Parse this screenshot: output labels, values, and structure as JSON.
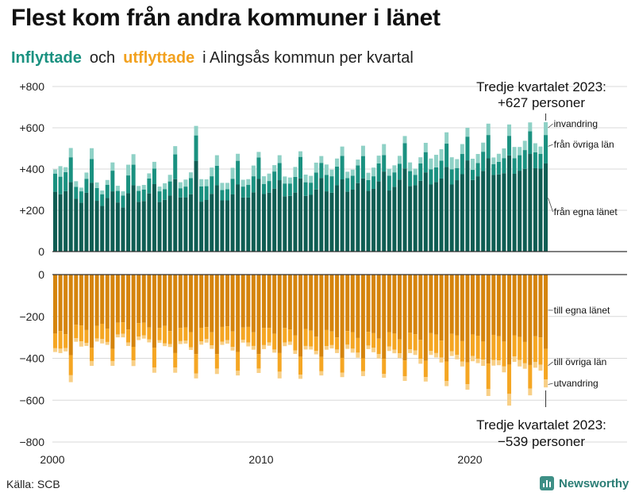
{
  "header": {
    "title": "Flest kom från andra kommuner i länet",
    "subtitle_in": "Inflyttade",
    "subtitle_and": "och",
    "subtitle_out": "utflyttade",
    "subtitle_rest": "i Alingsås  kommun  per  kvartal"
  },
  "footer": {
    "source": "Källa: SCB",
    "brand": "Newsworthy"
  },
  "colors": {
    "in_own_county": "#0f5d53",
    "in_other_county": "#1a9180",
    "in_immigration": "#8fd1c6",
    "out_own_county": "#d5840d",
    "out_other_county": "#f5a623",
    "out_emigration": "#f8cf86",
    "grid": "#d9d9d9",
    "axis": "#333333"
  },
  "chart_data": {
    "type": "bar",
    "stacked": true,
    "diverging": true,
    "x_axis": {
      "unit": "kvartal",
      "first_period": "2000 Q1",
      "last_period": "2023 Q3",
      "tick_labels": [
        "2000",
        "2010",
        "2020"
      ]
    },
    "panels": [
      {
        "name": "Inflyttade",
        "ylim": [
          0,
          800
        ],
        "ticks": [
          0,
          200,
          400,
          600,
          800
        ],
        "tick_labels": [
          "0",
          "+200",
          "+400",
          "+600",
          "+800"
        ],
        "series": [
          {
            "name": "från egna länet",
            "values": [
              290,
              278,
              293,
              337,
              256,
              237,
              285,
              334,
              246,
              221,
              260,
              292,
              238,
              214,
              283,
              321,
              241,
              245,
              282,
              327,
              240,
              251,
              271,
              351,
              262,
              263,
              278,
              440,
              242,
              250,
              280,
              321,
              248,
              248,
              277,
              325,
              262,
              262,
              287,
              352,
              279,
              285,
              305,
              346,
              268,
              270,
              286,
              355,
              270,
              275,
              301,
              357,
              292,
              285,
              321,
              350,
              290,
              300,
              332,
              355,
              294,
              304,
              340,
              388,
              296,
              314,
              349,
              403,
              317,
              321,
              343,
              384,
              325,
              337,
              354,
              410,
              325,
              346,
              375,
              442,
              347,
              365,
              391,
              452,
              371,
              374,
              380,
              466,
              377,
              392,
              401,
              473,
              404,
              402,
              427
            ]
          },
          {
            "name": "från övriga län",
            "values": [
              88,
              85,
              92,
              120,
              58,
              55,
              68,
              115,
              62,
              57,
              64,
              100,
              56,
              58,
              86,
              100,
              53,
              56,
              72,
              75,
              52,
              52,
              69,
              120,
              45,
              52,
              78,
              123,
              74,
              67,
              85,
              95,
              50,
              54,
              76,
              115,
              53,
              61,
              78,
              104,
              49,
              57,
              83,
              83,
              62,
              60,
              76,
              104,
              66,
              59,
              82,
              73,
              80,
              80,
              91,
              114,
              66,
              68,
              86,
              108,
              53,
              61,
              87,
              80,
              72,
              70,
              77,
              122,
              73,
              51,
              84,
              98,
              74,
              71,
              87,
              113,
              74,
              59,
              98,
              115,
              49,
              64,
              93,
              113,
              53,
              61,
              73,
              95,
              75,
              75,
              91,
              110,
              77,
              72,
              138
            ]
          },
          {
            "name": "invandring",
            "values": [
              20,
              51,
              24,
              45,
              27,
              18,
              30,
              52,
              27,
              18,
              23,
              40,
              25,
              20,
              52,
              51,
              24,
              22,
              25,
              33,
              23,
              28,
              32,
              40,
              29,
              34,
              28,
              46,
              35,
              33,
              42,
              51,
              35,
              31,
              53,
              34,
              33,
              28,
              52,
              27,
              37,
              36,
              31,
              38,
              34,
              29,
              48,
              27,
              37,
              33,
              48,
              33,
              50,
              32,
              39,
              45,
              31,
              29,
              28,
              50,
              35,
              42,
              38,
              53,
              33,
              34,
              38,
              35,
              42,
              30,
              30,
              45,
              52,
              61,
              55,
              55,
              58,
              43,
              48,
              43,
              54,
              44,
              44,
              55,
              32,
              39,
              47,
              55,
              55,
              40,
              45,
              43,
              44,
              35,
              62
            ]
          }
        ]
      },
      {
        "name": "Utflyttade",
        "ylim": [
          -800,
          0
        ],
        "ticks": [
          0,
          -200,
          -400,
          -600,
          -800
        ],
        "tick_labels": [
          "0",
          "−200",
          "−400",
          "−600",
          "−800"
        ],
        "series": [
          {
            "name": "till egna länet",
            "values": [
              -282,
              -270,
              -285,
              -385,
              -240,
              -243,
              -265,
              -350,
              -245,
              -235,
              -258,
              -355,
              -230,
              -228,
              -262,
              -345,
              -232,
              -230,
              -253,
              -350,
              -255,
              -245,
              -270,
              -375,
              -255,
              -252,
              -275,
              -380,
              -254,
              -251,
              -276,
              -380,
              -250,
              -247,
              -272,
              -370,
              -253,
              -250,
              -276,
              -380,
              -255,
              -255,
              -283,
              -375,
              -255,
              -262,
              -290,
              -392,
              -260,
              -268,
              -297,
              -393,
              -265,
              -272,
              -300,
              -398,
              -270,
              -275,
              -303,
              -400,
              -274,
              -280,
              -306,
              -403,
              -275,
              -282,
              -310,
              -410,
              -278,
              -285,
              -312,
              -412,
              -280,
              -287,
              -315,
              -415,
              -283,
              -290,
              -318,
              -420,
              -286,
              -292,
              -320,
              -425,
              -288,
              -295,
              -320,
              -430,
              -290,
              -298,
              -322,
              -432,
              -295,
              -300,
              -355
            ]
          },
          {
            "name": "till övriga län",
            "values": [
              -70,
              -84,
              -66,
              -96,
              -64,
              -76,
              -61,
              -63,
              -60,
              -73,
              -64,
              -58,
              -56,
              -55,
              -63,
              -65,
              -64,
              -60,
              -57,
              -94,
              -59,
              -84,
              -62,
              -69,
              -63,
              -64,
              -72,
              -92,
              -65,
              -57,
              -62,
              -69,
              -71,
              -66,
              -74,
              -90,
              -59,
              -75,
              -65,
              -69,
              -82,
              -69,
              -75,
              -89,
              -70,
              -59,
              -72,
              -86,
              -81,
              -75,
              -68,
              -69,
              -77,
              -65,
              -58,
              -71,
              -65,
              -79,
              -70,
              -62,
              -65,
              -70,
              -74,
              -71,
              -69,
              -77,
              -66,
              -76,
              -79,
              -77,
              -90,
              -78,
              -84,
              -88,
              -81,
              -94,
              -83,
              -93,
              -98,
              -104,
              -103,
              -110,
              -86,
              -122,
              -120,
              -115,
              -119,
              -140,
              -101,
              -110,
              -102,
              -112,
              -122,
              -131,
              -146
            ]
          },
          {
            "name": "utvandring",
            "values": [
              -18,
              -21,
              -16,
              -33,
              -17,
              -25,
              -15,
              -23,
              -15,
              -21,
              -14,
              -23,
              -14,
              -17,
              -16,
              -27,
              -17,
              -16,
              -14,
              -25,
              -12,
              -13,
              -14,
              -25,
              -14,
              -14,
              -13,
              -24,
              -16,
              -17,
              -17,
              -26,
              -15,
              -17,
              -17,
              -22,
              -13,
              -18,
              -18,
              -21,
              -19,
              -16,
              -15,
              -32,
              -17,
              -15,
              -17,
              -20,
              -17,
              -15,
              -16,
              -20,
              -17,
              -16,
              -17,
              -21,
              -20,
              -19,
              -24,
              -23,
              -17,
              -21,
              -21,
              -19,
              -21,
              -17,
              -23,
              -22,
              -18,
              -22,
              -24,
              -21,
              -20,
              -21,
              -24,
              -24,
              -23,
              -22,
              -23,
              -26,
              -25,
              -21,
              -30,
              -33,
              -27,
              -23,
              -28,
              -56,
              -26,
              -31,
              -26,
              -33,
              -28,
              -28,
              -38
            ]
          }
        ]
      }
    ],
    "annotations": [
      {
        "panel": "Inflyttade",
        "text_line1": "Tredje kvartalet 2023:",
        "text_line2": "+627 personer"
      },
      {
        "panel": "Utflyttade",
        "text_line1": "Tredje kvartalet 2023:",
        "text_line2": "−539 personer"
      }
    ],
    "series_labels": {
      "top": [
        "invandring",
        "från övriga län",
        "från egna länet"
      ],
      "bottom": [
        "till egna länet",
        "till övriga län",
        "utvandring"
      ]
    }
  }
}
